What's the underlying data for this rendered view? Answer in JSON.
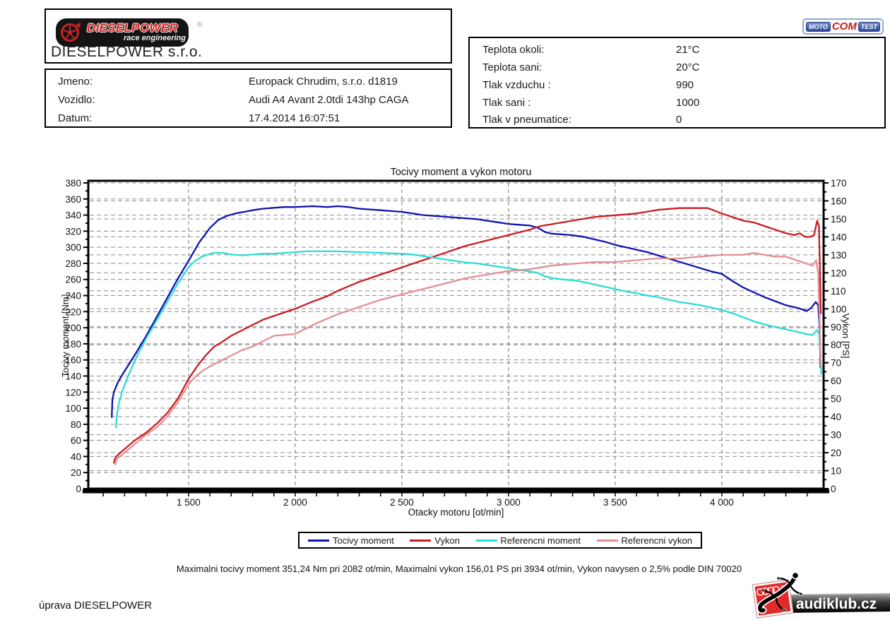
{
  "header": {
    "logo": {
      "brand": "DIESELPOWER",
      "subtitle": "race engineering",
      "registered": "®"
    },
    "company": "DIESELPOWER s.r.o.",
    "customer_box": {
      "rows": [
        {
          "label": "Jmeno:",
          "value": "Europack Chrudim, s.r.o. d1819"
        },
        {
          "label": "Vozidlo:",
          "value": "Audi A4 Avant 2.0tdi 143hp CAGA"
        },
        {
          "label": "Datum:",
          "value": "17.4.2014 16:07:51"
        }
      ]
    },
    "conditions_box": {
      "rows": [
        {
          "label": "Teplota okoli:",
          "value": "21°C"
        },
        {
          "label": "Teplota sani:",
          "value": "20°C"
        },
        {
          "label": "Tlak vzduchu :",
          "value": "990"
        },
        {
          "label": "Tlak sani :",
          "value": "1000"
        },
        {
          "label": "Tlak v pneumatice:",
          "value": "0"
        }
      ]
    },
    "motocomtest": {
      "moto": "MOTO",
      "com": "COM",
      "test": "TEST"
    }
  },
  "chart_data": {
    "type": "line",
    "title": "Tocivy moment a vykon motoru",
    "xlabel": "Otacky motoru [ot/min]",
    "ylabel_left": "Tocivy moment [Nm]",
    "ylabel_right": "Vykon [PS]",
    "xlim": [
      1030,
      4477
    ],
    "ylim_left": [
      0,
      380
    ],
    "ylim_right": [
      0,
      170
    ],
    "x_ticks": [
      1500,
      2000,
      2500,
      3000,
      3500,
      4000
    ],
    "x_minor_step": 100,
    "y_left_step": 20,
    "y_right_step": 10,
    "grid": "dashed",
    "legend_position": "bottom",
    "series": [
      {
        "name": "Tocivy moment",
        "axis": "left",
        "color": "#1012b2",
        "points": [
          [
            1140,
            88
          ],
          [
            1143,
            110
          ],
          [
            1150,
            120
          ],
          [
            1170,
            133
          ],
          [
            1200,
            146
          ],
          [
            1250,
            167
          ],
          [
            1300,
            189
          ],
          [
            1350,
            213
          ],
          [
            1400,
            237
          ],
          [
            1450,
            261
          ],
          [
            1500,
            283
          ],
          [
            1550,
            306
          ],
          [
            1600,
            324
          ],
          [
            1640,
            334
          ],
          [
            1680,
            339
          ],
          [
            1720,
            342
          ],
          [
            1760,
            344
          ],
          [
            1800,
            346
          ],
          [
            1850,
            348
          ],
          [
            1900,
            349
          ],
          [
            1950,
            350
          ],
          [
            2000,
            350
          ],
          [
            2082,
            351
          ],
          [
            2150,
            350
          ],
          [
            2200,
            351
          ],
          [
            2250,
            350
          ],
          [
            2300,
            348
          ],
          [
            2350,
            347
          ],
          [
            2400,
            346
          ],
          [
            2450,
            345
          ],
          [
            2500,
            344
          ],
          [
            2550,
            342
          ],
          [
            2600,
            340
          ],
          [
            2650,
            339
          ],
          [
            2700,
            338
          ],
          [
            2750,
            337
          ],
          [
            2800,
            336
          ],
          [
            2850,
            335
          ],
          [
            2900,
            333
          ],
          [
            2950,
            331
          ],
          [
            3000,
            329
          ],
          [
            3050,
            328
          ],
          [
            3100,
            327
          ],
          [
            3140,
            324
          ],
          [
            3170,
            319
          ],
          [
            3200,
            317
          ],
          [
            3250,
            316
          ],
          [
            3300,
            315
          ],
          [
            3350,
            313
          ],
          [
            3400,
            310
          ],
          [
            3450,
            307
          ],
          [
            3500,
            303
          ],
          [
            3550,
            300
          ],
          [
            3600,
            297
          ],
          [
            3650,
            294
          ],
          [
            3700,
            290
          ],
          [
            3750,
            286
          ],
          [
            3800,
            282
          ],
          [
            3850,
            278
          ],
          [
            3900,
            274
          ],
          [
            3950,
            270
          ],
          [
            4000,
            267
          ],
          [
            4050,
            258
          ],
          [
            4100,
            250
          ],
          [
            4150,
            244
          ],
          [
            4200,
            238
          ],
          [
            4250,
            233
          ],
          [
            4300,
            228
          ],
          [
            4350,
            225
          ],
          [
            4385,
            222
          ],
          [
            4400,
            221
          ],
          [
            4420,
            225
          ],
          [
            4440,
            232
          ],
          [
            4452,
            228
          ],
          [
            4458,
            200
          ],
          [
            4462,
            150
          ]
        ]
      },
      {
        "name": "Vykon",
        "axis": "right",
        "color": "#cc1b22",
        "points": [
          [
            1150,
            14
          ],
          [
            1153,
            16
          ],
          [
            1162,
            18
          ],
          [
            1180,
            20
          ],
          [
            1210,
            23
          ],
          [
            1250,
            27
          ],
          [
            1300,
            31
          ],
          [
            1350,
            36
          ],
          [
            1400,
            42
          ],
          [
            1450,
            50
          ],
          [
            1500,
            61
          ],
          [
            1540,
            68
          ],
          [
            1580,
            74
          ],
          [
            1620,
            79
          ],
          [
            1650,
            81
          ],
          [
            1700,
            85
          ],
          [
            1750,
            88
          ],
          [
            1800,
            91
          ],
          [
            1850,
            94
          ],
          [
            1900,
            96
          ],
          [
            1950,
            98
          ],
          [
            2000,
            100
          ],
          [
            2082,
            104
          ],
          [
            2150,
            107
          ],
          [
            2200,
            110
          ],
          [
            2300,
            115
          ],
          [
            2400,
            119
          ],
          [
            2500,
            123
          ],
          [
            2600,
            127
          ],
          [
            2700,
            131
          ],
          [
            2800,
            135
          ],
          [
            2900,
            138
          ],
          [
            3000,
            141
          ],
          [
            3100,
            144
          ],
          [
            3150,
            146
          ],
          [
            3200,
            147
          ],
          [
            3300,
            149
          ],
          [
            3400,
            151
          ],
          [
            3500,
            152
          ],
          [
            3600,
            153
          ],
          [
            3700,
            155
          ],
          [
            3800,
            156
          ],
          [
            3900,
            156
          ],
          [
            3934,
            156
          ],
          [
            4000,
            153
          ],
          [
            4050,
            151
          ],
          [
            4100,
            149
          ],
          [
            4150,
            148
          ],
          [
            4200,
            146
          ],
          [
            4250,
            144
          ],
          [
            4300,
            142
          ],
          [
            4340,
            141
          ],
          [
            4365,
            142
          ],
          [
            4390,
            140
          ],
          [
            4415,
            140
          ],
          [
            4432,
            141
          ],
          [
            4447,
            149
          ],
          [
            4455,
            146
          ],
          [
            4460,
            120
          ],
          [
            4464,
            97
          ]
        ]
      },
      {
        "name": "Referencni moment",
        "axis": "left",
        "color": "#2bdcd8",
        "points": [
          [
            1160,
            75
          ],
          [
            1163,
            90
          ],
          [
            1172,
            105
          ],
          [
            1190,
            122
          ],
          [
            1220,
            142
          ],
          [
            1260,
            166
          ],
          [
            1300,
            186
          ],
          [
            1350,
            209
          ],
          [
            1400,
            232
          ],
          [
            1450,
            255
          ],
          [
            1500,
            275
          ],
          [
            1530,
            283
          ],
          [
            1560,
            288
          ],
          [
            1590,
            291
          ],
          [
            1620,
            293
          ],
          [
            1660,
            293
          ],
          [
            1700,
            291
          ],
          [
            1750,
            290
          ],
          [
            1800,
            291
          ],
          [
            1850,
            292
          ],
          [
            1900,
            292
          ],
          [
            1950,
            293
          ],
          [
            2000,
            294
          ],
          [
            2050,
            295
          ],
          [
            2100,
            295
          ],
          [
            2200,
            295
          ],
          [
            2300,
            294
          ],
          [
            2400,
            293
          ],
          [
            2500,
            292
          ],
          [
            2550,
            291
          ],
          [
            2600,
            289
          ],
          [
            2650,
            287
          ],
          [
            2700,
            285
          ],
          [
            2750,
            283
          ],
          [
            2800,
            281
          ],
          [
            2850,
            280
          ],
          [
            2900,
            278
          ],
          [
            2950,
            276
          ],
          [
            3000,
            274
          ],
          [
            3050,
            272
          ],
          [
            3100,
            270
          ],
          [
            3140,
            268
          ],
          [
            3170,
            264
          ],
          [
            3200,
            262
          ],
          [
            3250,
            260
          ],
          [
            3300,
            259
          ],
          [
            3350,
            257
          ],
          [
            3400,
            254
          ],
          [
            3450,
            251
          ],
          [
            3500,
            248
          ],
          [
            3550,
            245
          ],
          [
            3600,
            243
          ],
          [
            3650,
            240
          ],
          [
            3700,
            238
          ],
          [
            3750,
            235
          ],
          [
            3800,
            232
          ],
          [
            3850,
            230
          ],
          [
            3900,
            228
          ],
          [
            3950,
            225
          ],
          [
            4000,
            222
          ],
          [
            4050,
            218
          ],
          [
            4100,
            213
          ],
          [
            4150,
            208
          ],
          [
            4200,
            204
          ],
          [
            4250,
            201
          ],
          [
            4300,
            198
          ],
          [
            4350,
            195
          ],
          [
            4400,
            192
          ],
          [
            4425,
            191
          ],
          [
            4445,
            197
          ],
          [
            4455,
            193
          ],
          [
            4460,
            175
          ],
          [
            4466,
            142
          ]
        ]
      },
      {
        "name": "Referencni vykon",
        "axis": "right",
        "color": "#e28f94",
        "points": [
          [
            1155,
            13
          ],
          [
            1158,
            15
          ],
          [
            1168,
            17
          ],
          [
            1190,
            19
          ],
          [
            1220,
            22
          ],
          [
            1260,
            26
          ],
          [
            1300,
            30
          ],
          [
            1350,
            34
          ],
          [
            1400,
            40
          ],
          [
            1450,
            48
          ],
          [
            1500,
            58
          ],
          [
            1530,
            62
          ],
          [
            1560,
            65
          ],
          [
            1600,
            68
          ],
          [
            1650,
            71
          ],
          [
            1700,
            74
          ],
          [
            1750,
            77
          ],
          [
            1800,
            79
          ],
          [
            1850,
            82
          ],
          [
            1900,
            85
          ],
          [
            2000,
            86
          ],
          [
            2100,
            92
          ],
          [
            2200,
            97
          ],
          [
            2300,
            101
          ],
          [
            2400,
            105
          ],
          [
            2500,
            108
          ],
          [
            2600,
            111
          ],
          [
            2700,
            114
          ],
          [
            2800,
            117
          ],
          [
            2900,
            119
          ],
          [
            3000,
            121
          ],
          [
            3100,
            122
          ],
          [
            3200,
            124
          ],
          [
            3300,
            125
          ],
          [
            3400,
            126
          ],
          [
            3500,
            126
          ],
          [
            3600,
            127
          ],
          [
            3700,
            128
          ],
          [
            3800,
            128
          ],
          [
            3900,
            129
          ],
          [
            4000,
            130
          ],
          [
            4050,
            130
          ],
          [
            4100,
            130
          ],
          [
            4150,
            131
          ],
          [
            4200,
            130
          ],
          [
            4250,
            129
          ],
          [
            4300,
            129
          ],
          [
            4350,
            127
          ],
          [
            4400,
            125
          ],
          [
            4425,
            124
          ],
          [
            4442,
            127
          ],
          [
            4452,
            120
          ],
          [
            4458,
            95
          ],
          [
            4464,
            68
          ]
        ]
      }
    ]
  },
  "footer": {
    "summary": "Maximalni tocivy moment 351,24 Nm pri 2082 ot/min,  Maximalni vykon 156,01 PS pri 3934 ot/min,  Vykon navysen o 2,5% podle DIN 70020",
    "tuning_label": "úprava DIESELPOWER",
    "audiklub_text": "audiklub.cz"
  }
}
